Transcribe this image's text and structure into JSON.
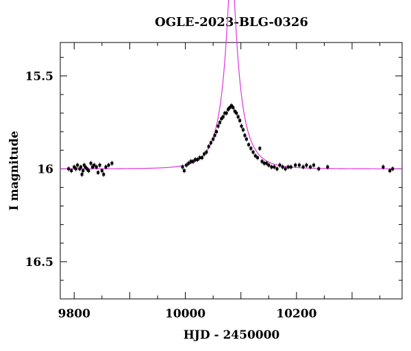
{
  "chart_data": {
    "type": "scatter",
    "title": "OGLE-2023-BLG-0326",
    "xlabel": "HJD - 2450000",
    "ylabel": "I magnitude",
    "xlim": [
      9775,
      10390
    ],
    "ylim": [
      16.7,
      15.32
    ],
    "y_inverted": true,
    "xticks": [
      9800,
      10000,
      10200
    ],
    "xtick_labels": [
      "9800",
      "10000",
      "10200"
    ],
    "yticks": [
      15.5,
      16,
      16.5
    ],
    "ytick_labels": [
      "15.5",
      "16",
      "16.5"
    ],
    "grid": false,
    "colors": {
      "model": "#dd33dd",
      "points": "#000000",
      "axes": "#000000"
    },
    "model": {
      "t0": 10083,
      "u0": 0.17,
      "tE": 40,
      "baseline": 16.0,
      "fs": 0.35
    },
    "series": [
      {
        "type": "scatter",
        "x": [
          9790,
          9795,
          9800,
          9803,
          9806,
          9810,
          9812,
          9814,
          9816,
          9818,
          9820,
          9823,
          9826,
          9830,
          9833,
          9836,
          9840,
          9843,
          9846,
          9850,
          9853,
          9857,
          9862,
          9868,
          9995,
          9998,
          10002,
          10006,
          10010,
          10014,
          10018,
          10022,
          10026,
          10030,
          10034,
          10038,
          10042,
          10046,
          10050,
          10053,
          10056,
          10059,
          10062,
          10065,
          10068,
          10071,
          10074,
          10077,
          10080,
          10083,
          10086,
          10089,
          10092,
          10095,
          10098,
          10101,
          10104,
          10107,
          10110,
          10114,
          10118,
          10122,
          10126,
          10130,
          10134,
          10138,
          10142,
          10146,
          10150,
          10155,
          10160,
          10165,
          10170,
          10175,
          10180,
          10185,
          10190,
          10198,
          10205,
          10212,
          10218,
          10225,
          10231,
          10240,
          10256,
          10356,
          10368,
          10373
        ],
        "y": [
          16.0,
          16.01,
          15.99,
          16.0,
          15.98,
          16.0,
          15.99,
          16.03,
          16.01,
          15.98,
          15.99,
          16.0,
          16.01,
          15.97,
          15.99,
          15.98,
          15.99,
          16.02,
          15.98,
          16.01,
          16.03,
          15.99,
          15.98,
          15.97,
          15.99,
          16.01,
          15.98,
          15.97,
          15.96,
          15.96,
          15.95,
          15.95,
          15.94,
          15.94,
          15.92,
          15.91,
          15.88,
          15.86,
          15.84,
          15.82,
          15.8,
          15.77,
          15.75,
          15.73,
          15.72,
          15.7,
          15.7,
          15.68,
          15.67,
          15.66,
          15.67,
          15.69,
          15.7,
          15.72,
          15.74,
          15.77,
          15.79,
          15.82,
          15.84,
          15.87,
          15.89,
          15.91,
          15.93,
          15.94,
          15.89,
          15.96,
          15.97,
          15.97,
          15.98,
          15.99,
          15.99,
          16.0,
          15.98,
          15.99,
          16.0,
          15.99,
          15.99,
          15.98,
          15.98,
          15.99,
          15.98,
          15.99,
          15.98,
          16.0,
          15.99,
          15.99,
          16.01,
          16.0
        ]
      }
    ]
  }
}
